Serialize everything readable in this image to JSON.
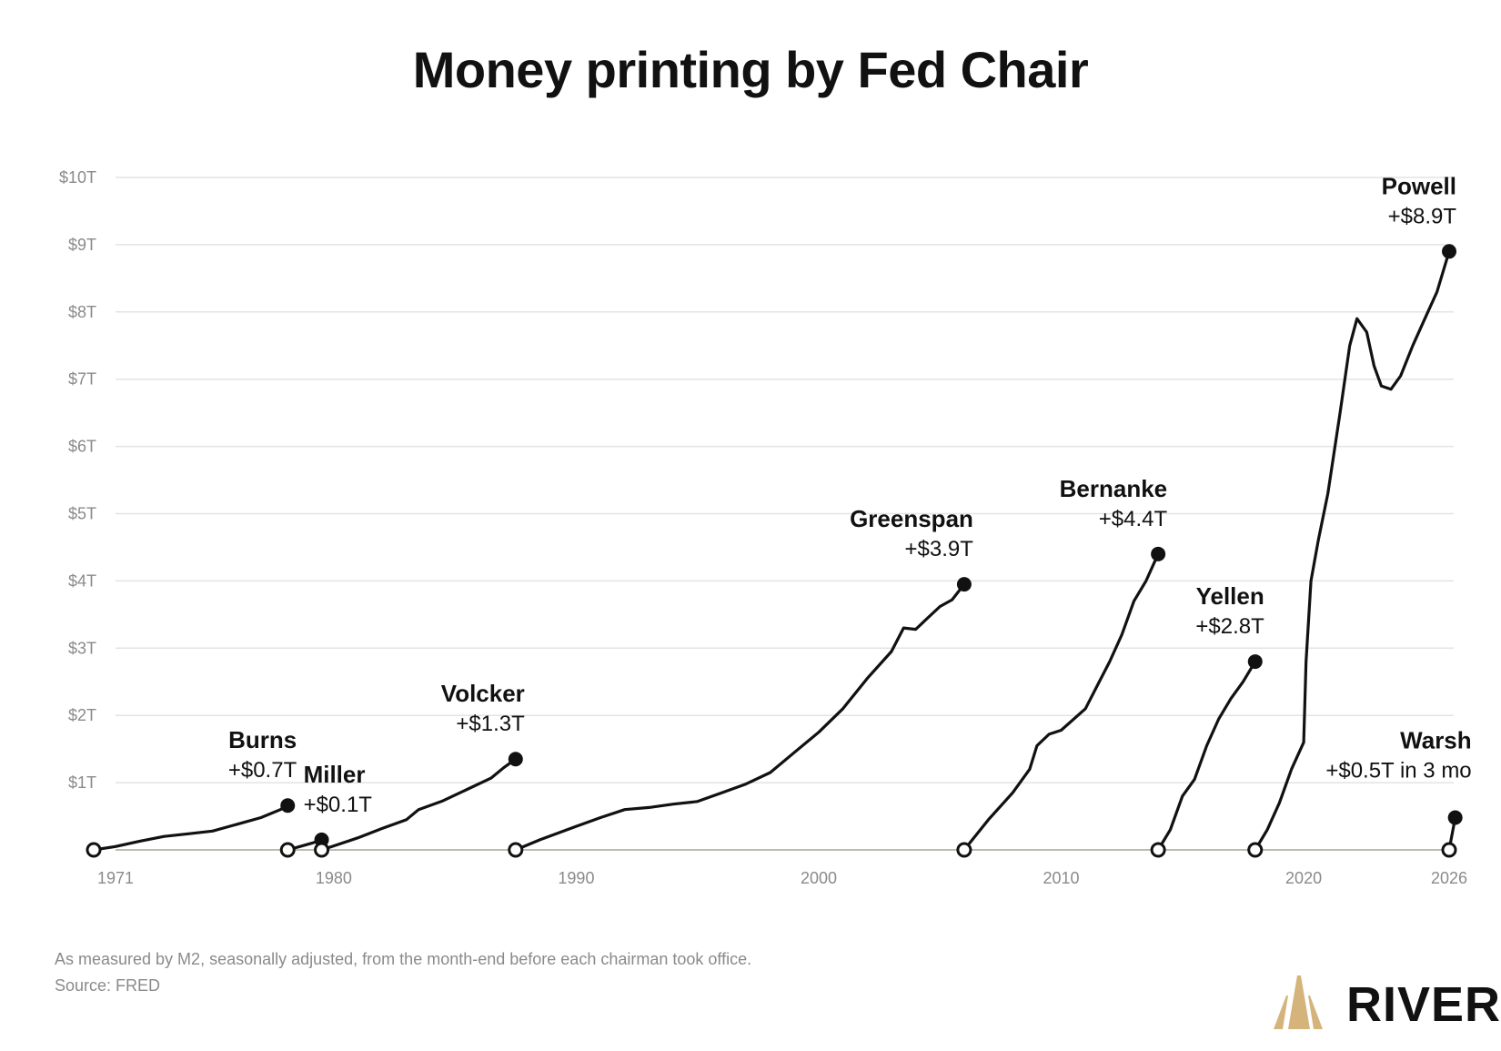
{
  "title": "Money printing by Fed Chair",
  "footnote": "As measured by M2, seasonally adjusted, from the month-end before each chairman took office.",
  "source": "Source: FRED",
  "brand": {
    "name": "RIVER",
    "logo_icon": "river-mountain-logo-icon",
    "logo_color": "#D4B47A"
  },
  "colors": {
    "line": "#111111",
    "grid": "#e3e3e3",
    "axis": "#bdbdad",
    "tick_text": "#8a8a8a"
  },
  "chart_data": {
    "type": "line",
    "title": "Money printing by Fed Chair",
    "xlim": [
      1971,
      2026
    ],
    "ylim": [
      0,
      10
    ],
    "x_ticks": [
      {
        "value": 1971,
        "label": "1971"
      },
      {
        "value": 1980,
        "label": "1980"
      },
      {
        "value": 1990,
        "label": "1990"
      },
      {
        "value": 2000,
        "label": "2000"
      },
      {
        "value": 2010,
        "label": "2010"
      },
      {
        "value": 2020,
        "label": "2020"
      },
      {
        "value": 2026,
        "label": "2026"
      }
    ],
    "y_ticks": [
      {
        "value": 0,
        "label": "0"
      },
      {
        "value": 1,
        "label": "$1T"
      },
      {
        "value": 2,
        "label": "$2T"
      },
      {
        "value": 3,
        "label": "$3T"
      },
      {
        "value": 4,
        "label": "$4T"
      },
      {
        "value": 5,
        "label": "$5T"
      },
      {
        "value": 6,
        "label": "$6T"
      },
      {
        "value": 7,
        "label": "$7T"
      },
      {
        "value": 8,
        "label": "$8T"
      },
      {
        "value": 9,
        "label": "$9T"
      },
      {
        "value": 10,
        "label": "$10T"
      }
    ],
    "grid": true,
    "legend": "none",
    "series": [
      {
        "name": "Burns",
        "change": "+$0.7T",
        "label_align": "right",
        "x": [
          1970.1,
          1971.0,
          1972.0,
          1973.0,
          1974.0,
          1975.0,
          1976.0,
          1977.0,
          1977.8,
          1978.1
        ],
        "y": [
          0.0,
          0.05,
          0.13,
          0.2,
          0.24,
          0.28,
          0.38,
          0.48,
          0.6,
          0.66
        ]
      },
      {
        "name": "Miller",
        "change": "+$0.1T",
        "label_align": "left",
        "x": [
          1978.1,
          1978.6,
          1979.1,
          1979.5
        ],
        "y": [
          0.0,
          0.05,
          0.1,
          0.15
        ]
      },
      {
        "name": "Volcker",
        "change": "+$1.3T",
        "label_align": "right",
        "x": [
          1979.5,
          1980.0,
          1981.0,
          1982.0,
          1983.0,
          1983.5,
          1984.5,
          1985.5,
          1986.5,
          1987.0,
          1987.5
        ],
        "y": [
          0.0,
          0.06,
          0.18,
          0.32,
          0.45,
          0.6,
          0.73,
          0.9,
          1.07,
          1.22,
          1.35
        ]
      },
      {
        "name": "Greenspan",
        "change": "+$3.9T",
        "label_align": "right",
        "x": [
          1987.5,
          1988.5,
          1990.0,
          1991.0,
          1992.0,
          1993.0,
          1994.0,
          1995.0,
          1996.0,
          1997.0,
          1998.0,
          1999.0,
          2000.0,
          2001.0,
          2002.0,
          2003.0,
          2003.5,
          2004.0,
          2004.5,
          2005.0,
          2005.5,
          2006.0
        ],
        "y": [
          0.0,
          0.15,
          0.35,
          0.48,
          0.6,
          0.63,
          0.68,
          0.72,
          0.85,
          0.98,
          1.15,
          1.45,
          1.75,
          2.1,
          2.55,
          2.95,
          3.3,
          3.28,
          3.45,
          3.62,
          3.72,
          3.95
        ]
      },
      {
        "name": "Bernanke",
        "change": "+$4.4T",
        "label_align": "right",
        "x": [
          2006.0,
          2007.0,
          2008.0,
          2008.7,
          2009.0,
          2009.5,
          2010.0,
          2011.0,
          2011.5,
          2012.0,
          2012.5,
          2013.0,
          2013.5,
          2014.0
        ],
        "y": [
          0.0,
          0.45,
          0.85,
          1.2,
          1.55,
          1.72,
          1.78,
          2.1,
          2.45,
          2.8,
          3.2,
          3.7,
          4.0,
          4.4
        ]
      },
      {
        "name": "Yellen",
        "change": "+$2.8T",
        "label_align": "right",
        "x": [
          2014.0,
          2014.5,
          2015.0,
          2015.5,
          2016.0,
          2016.5,
          2017.0,
          2017.5,
          2018.0
        ],
        "y": [
          0.0,
          0.3,
          0.8,
          1.05,
          1.55,
          1.95,
          2.25,
          2.5,
          2.8
        ]
      },
      {
        "name": "Powell",
        "change": "+$8.9T",
        "label_align": "right",
        "x": [
          2018.0,
          2018.5,
          2019.0,
          2019.5,
          2020.0,
          2020.1,
          2020.3,
          2020.6,
          2021.0,
          2021.5,
          2021.9,
          2022.2,
          2022.6,
          2022.9,
          2023.2,
          2023.6,
          2024.0,
          2024.5,
          2025.0,
          2025.5,
          2026.0
        ],
        "y": [
          0.0,
          0.3,
          0.7,
          1.2,
          1.6,
          2.8,
          4.0,
          4.6,
          5.3,
          6.5,
          7.5,
          7.9,
          7.7,
          7.2,
          6.9,
          6.85,
          7.05,
          7.5,
          7.9,
          8.3,
          8.9
        ]
      },
      {
        "name": "Warsh",
        "change": "+$0.5T in 3 mo",
        "label_align": "right",
        "x": [
          2026.0,
          2026.25
        ],
        "y": [
          0.0,
          0.48
        ]
      }
    ]
  }
}
